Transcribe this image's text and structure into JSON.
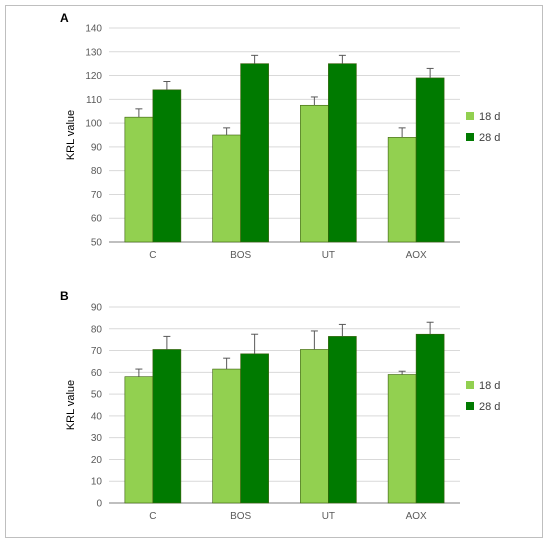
{
  "colors": {
    "series_18": "#92d050",
    "series_28": "#007a00",
    "grid": "#d9d9d9",
    "axis": "#7f7f7f"
  },
  "chart_data": [
    {
      "type": "bar",
      "panel": "A",
      "title": "",
      "xlabel": "",
      "ylabel": "KRL value",
      "ylim": [
        50,
        140
      ],
      "ytick_step": 10,
      "grid": true,
      "legend_position": "right",
      "categories": [
        "C",
        "BOS",
        "UT",
        "AOX"
      ],
      "series": [
        {
          "name": "18 d",
          "values": [
            102.5,
            95,
            107.5,
            94
          ],
          "errors": [
            3.5,
            3,
            3.5,
            4
          ]
        },
        {
          "name": "28 d",
          "values": [
            114,
            125,
            125,
            119
          ],
          "errors": [
            3.5,
            3.5,
            3.5,
            4
          ]
        }
      ]
    },
    {
      "type": "bar",
      "panel": "B",
      "title": "",
      "xlabel": "",
      "ylabel": "KRL value",
      "ylim": [
        0,
        90
      ],
      "ytick_step": 10,
      "grid": true,
      "legend_position": "right",
      "categories": [
        "C",
        "BOS",
        "UT",
        "AOX"
      ],
      "series": [
        {
          "name": "18 d",
          "values": [
            58,
            61.5,
            70.5,
            59
          ],
          "errors": [
            3.5,
            5,
            8.5,
            1.5
          ]
        },
        {
          "name": "28 d",
          "values": [
            70.5,
            68.5,
            76.5,
            77.5
          ],
          "errors": [
            6,
            9,
            5.5,
            5.5
          ]
        }
      ]
    }
  ]
}
